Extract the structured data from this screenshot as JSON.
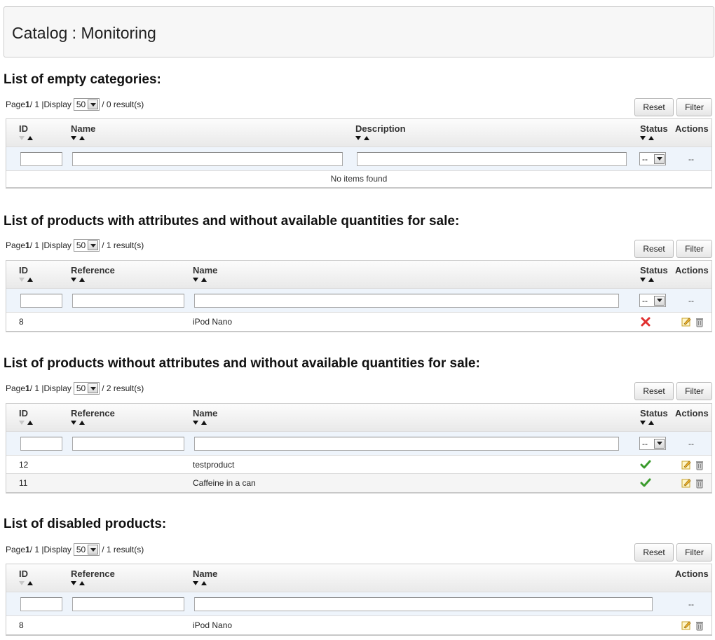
{
  "page": {
    "title": "Catalog : Monitoring"
  },
  "common": {
    "page_label": "Page",
    "display_label": "Display",
    "reset": "Reset",
    "filter": "Filter",
    "filter_dash": "--",
    "actions_dash": "--",
    "no_items": "No items found",
    "per_page": "50"
  },
  "sections": [
    {
      "title": "List of empty categories:",
      "page": "1",
      "pages": " / 1 | ",
      "results": " / 0 result(s)",
      "columns": {
        "id": "ID",
        "name": "Name",
        "description": "Description",
        "status": "Status",
        "actions": "Actions"
      },
      "rows": []
    },
    {
      "title": "List of products with attributes and without available quantities for sale:",
      "page": "1",
      "pages": " / 1 | ",
      "results": " / 1 result(s)",
      "columns": {
        "id": "ID",
        "reference": "Reference",
        "name": "Name",
        "status": "Status",
        "actions": "Actions"
      },
      "rows": [
        {
          "id": "8",
          "reference": "",
          "name": "iPod Nano",
          "status": "disabled"
        }
      ]
    },
    {
      "title": "List of products without attributes and without available quantities for sale:",
      "page": "1",
      "pages": " / 1 | ",
      "results": " / 2 result(s)",
      "columns": {
        "id": "ID",
        "reference": "Reference",
        "name": "Name",
        "status": "Status",
        "actions": "Actions"
      },
      "rows": [
        {
          "id": "12",
          "reference": "",
          "name": "testproduct",
          "status": "enabled"
        },
        {
          "id": "11",
          "reference": "",
          "name": "Caffeine in a can",
          "status": "enabled"
        }
      ]
    },
    {
      "title": "List of disabled products:",
      "page": "1",
      "pages": " / 1 | ",
      "results": " / 1 result(s)",
      "columns": {
        "id": "ID",
        "reference": "Reference",
        "name": "Name",
        "actions": "Actions"
      },
      "rows": [
        {
          "id": "8",
          "reference": "",
          "name": "iPod Nano"
        }
      ]
    }
  ],
  "icons": {
    "status_disabled": "cross-icon",
    "status_enabled": "check-icon",
    "edit": "pencil-icon",
    "delete": "trash-icon"
  },
  "colors": {
    "cross": "#e03030",
    "check": "#3a9b2c",
    "header_bg": "#f7f7f7",
    "filter_row": "#eef4fb"
  }
}
